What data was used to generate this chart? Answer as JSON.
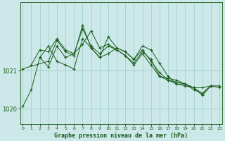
{
  "bg_color": "#cce8e8",
  "grid_color": "#99cccc",
  "line_color": "#1a5c1a",
  "xlabel": "Graphe pression niveau de la mer (hPa)",
  "yticks": [
    1020,
    1021
  ],
  "xtick_labels": [
    "0",
    "1",
    "2",
    "3",
    "4",
    "5",
    "6",
    "7",
    "8",
    "9",
    "10",
    "11",
    "12",
    "13",
    "14",
    "15",
    "16",
    "17",
    "18",
    "19",
    "20",
    "21",
    "22",
    "23"
  ],
  "ylim": [
    1019.6,
    1022.8
  ],
  "xlim": [
    -0.3,
    23.3
  ],
  "series1_x": [
    0,
    1,
    2,
    3,
    4,
    5,
    6,
    7,
    8,
    9,
    10,
    11,
    12,
    13,
    14,
    15,
    16,
    17,
    18,
    19,
    20,
    21,
    22,
    23
  ],
  "series1_y": [
    1020.05,
    1020.5,
    1021.35,
    1021.1,
    1021.65,
    1021.35,
    1021.45,
    1021.7,
    1022.05,
    1021.6,
    1021.7,
    1021.55,
    1021.4,
    1021.15,
    1021.45,
    1021.15,
    1020.85,
    1020.75,
    1020.65,
    1020.6,
    1020.55,
    1020.35,
    1020.6,
    1020.55
  ],
  "series2_x": [
    0,
    3,
    4,
    5,
    6,
    7,
    8,
    9,
    10,
    11,
    12,
    13,
    14,
    15,
    16,
    17,
    18,
    19,
    20,
    21,
    22
  ],
  "series2_y": [
    1021.05,
    1021.25,
    1021.8,
    1021.5,
    1021.4,
    1022.2,
    1021.6,
    1021.35,
    1021.9,
    1021.6,
    1021.5,
    1021.3,
    1021.65,
    1021.55,
    1021.2,
    1020.85,
    1020.65,
    1020.65,
    1020.55,
    1020.55,
    1020.6
  ],
  "series3_x": [
    2,
    3,
    4,
    5,
    6,
    7,
    8,
    9,
    10,
    11,
    12,
    13,
    14,
    15,
    16,
    17,
    18,
    19,
    20,
    21,
    22
  ],
  "series3_y": [
    1021.35,
    1021.65,
    1021.25,
    1021.15,
    1021.05,
    1021.85,
    1021.6,
    1021.35,
    1021.45,
    1021.6,
    1021.5,
    1021.3,
    1021.55,
    1021.25,
    1020.95,
    1020.75,
    1020.7,
    1020.65,
    1020.5,
    1020.4,
    1020.6
  ],
  "series4_x": [
    1,
    2,
    3,
    4,
    5,
    6,
    7,
    8,
    9,
    10,
    11,
    12,
    13,
    14,
    15,
    16,
    17,
    18,
    19,
    20,
    21,
    22,
    23
  ],
  "series4_y": [
    1021.15,
    1021.55,
    1021.5,
    1021.85,
    1021.55,
    1021.45,
    1022.1,
    1021.65,
    1021.45,
    1021.65,
    1021.55,
    1021.4,
    1021.2,
    1021.5,
    1021.3,
    1020.85,
    1020.8,
    1020.75,
    1020.65,
    1020.55,
    1020.4,
    1020.6,
    1020.6
  ]
}
